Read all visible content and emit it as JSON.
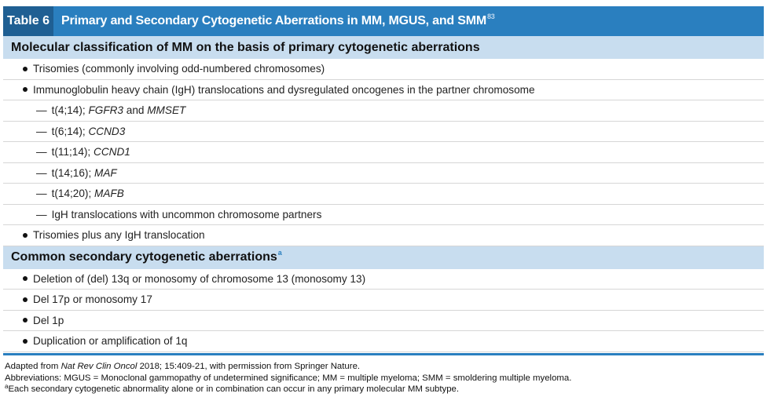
{
  "table": {
    "tag": "Table 6",
    "title": "Primary and Secondary Cytogenetic Aberrations in MM, MGUS, and SMM",
    "title_ref": "83"
  },
  "sections": [
    {
      "heading": "Molecular classification of MM on the basis of primary cytogenetic aberrations",
      "rows": [
        {
          "kind": "bullet",
          "text": "Trisomies (commonly involving odd-numbered chromosomes)"
        },
        {
          "kind": "bullet",
          "text": "Immunoglobulin heavy chain (IgH) translocations and dysregulated oncogenes in the partner chromosome"
        },
        {
          "kind": "sub",
          "prefix": "t(4;14); ",
          "gene": "FGFR3",
          "join": " and ",
          "gene2": "MMSET"
        },
        {
          "kind": "sub",
          "prefix": "t(6;14); ",
          "gene": "CCND3"
        },
        {
          "kind": "sub",
          "prefix": "t(11;14); ",
          "gene": "CCND1"
        },
        {
          "kind": "sub",
          "prefix": "t(14;16); ",
          "gene": "MAF"
        },
        {
          "kind": "sub",
          "prefix": "t(14;20); ",
          "gene": "MAFB"
        },
        {
          "kind": "sub",
          "prefix": "IgH translocations with uncommon chromosome partners"
        },
        {
          "kind": "bullet",
          "text": "Trisomies plus any IgH translocation"
        }
      ]
    },
    {
      "heading": "Common secondary cytogenetic aberrations",
      "heading_ref": "a",
      "rows": [
        {
          "kind": "bullet",
          "text": "Deletion of (del) 13q or monosomy of chromosome 13 (monosomy 13)"
        },
        {
          "kind": "bullet",
          "text": "Del 17p or monosomy 17"
        },
        {
          "kind": "bullet",
          "text": "Del 1p"
        },
        {
          "kind": "bullet",
          "text": "Duplication or amplification of 1q"
        }
      ]
    }
  ],
  "notes": {
    "adapted_prefix": "Adapted from ",
    "adapted_journal": "Nat Rev Clin Oncol",
    "adapted_suffix": " 2018; 15:409-21, with permission from Springer Nature.",
    "abbreviations": "Abbreviations: MGUS = Monoclonal gammopathy of undetermined significance; MM = multiple myeloma; SMM = smoldering multiple myeloma.",
    "footnote_mark": "a",
    "footnote_text": "Each secondary cytogenetic abnormality alone or in combination can occur in any primary molecular MM subtype."
  },
  "colors": {
    "title_bg": "#2a7fbf",
    "tag_bg": "#1f5f93",
    "section_bg": "#c8ddef"
  }
}
